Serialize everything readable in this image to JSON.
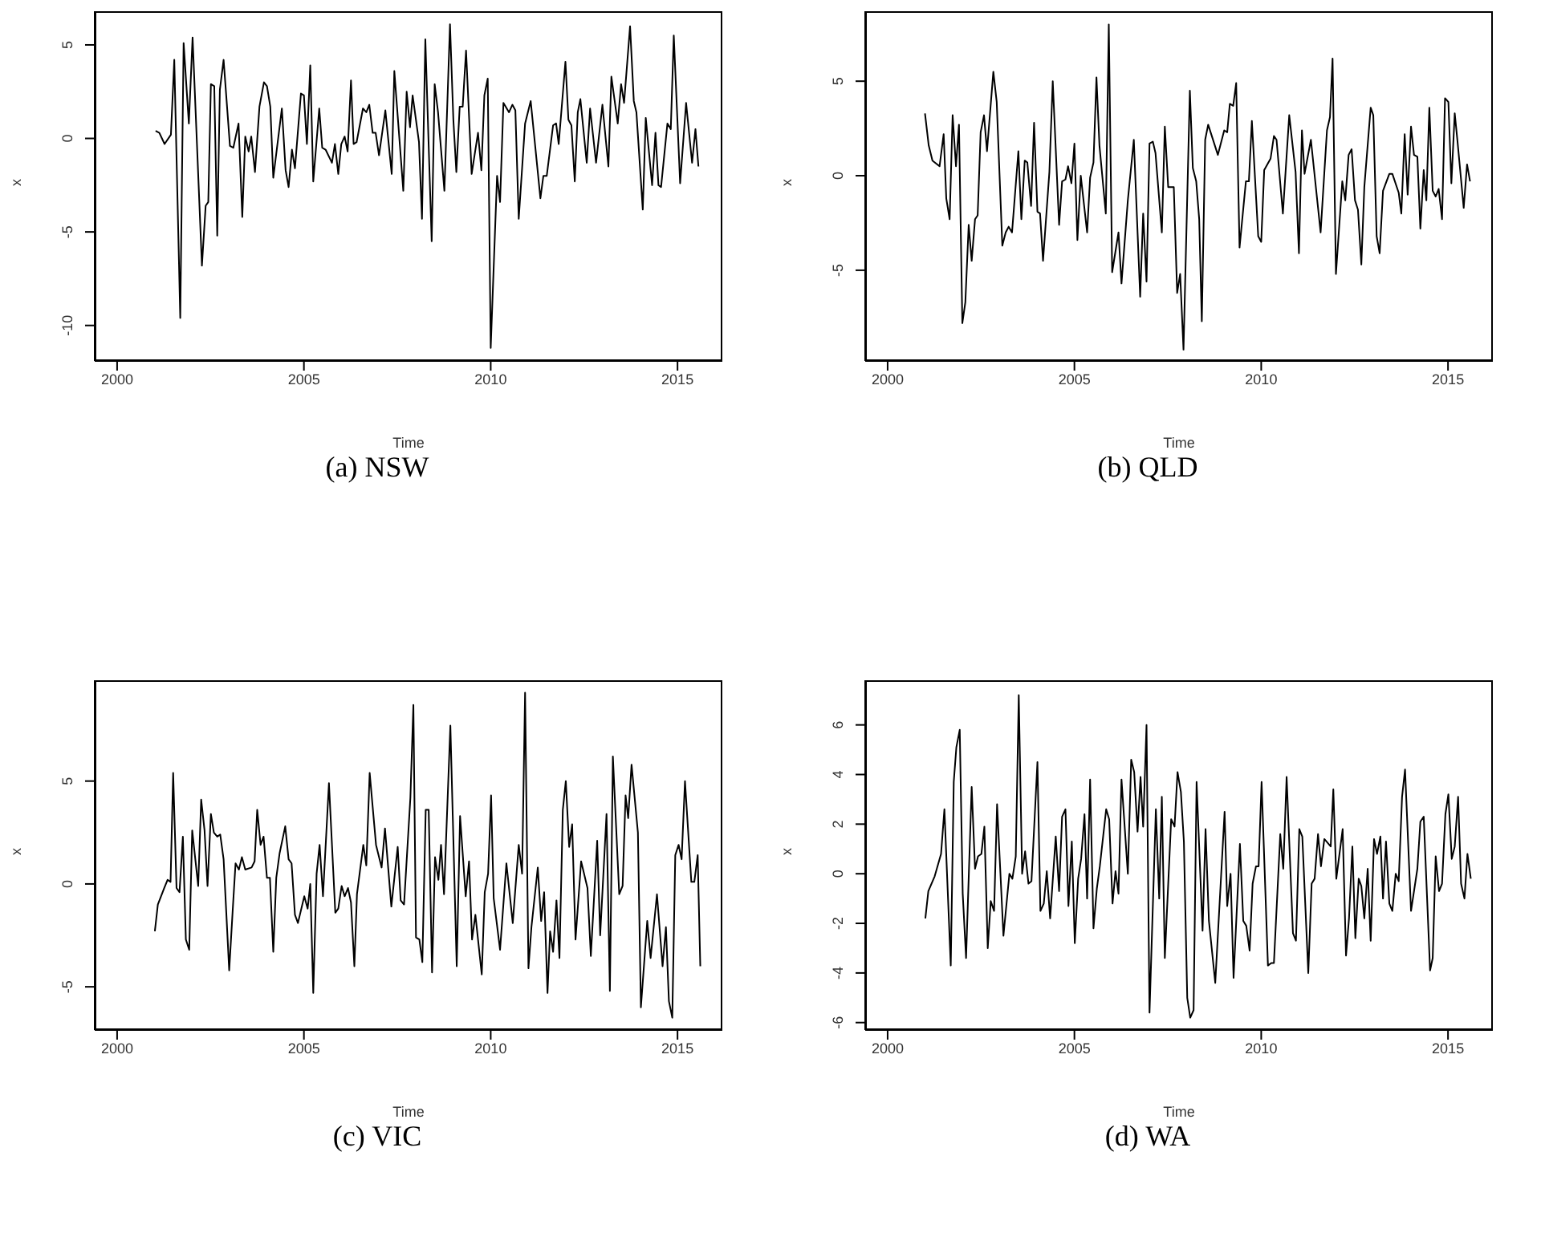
{
  "chart_data": [
    {
      "type": "line",
      "title": "(a) NSW",
      "xlabel": "Time",
      "ylabel": "x",
      "color": "#000000",
      "xlim": [
        1999.4,
        2016.2
      ],
      "xticks": [
        2000,
        2005,
        2010,
        2015
      ],
      "ylim": [
        -11.9,
        6.8
      ],
      "yticks": [
        -10,
        -5,
        0,
        5
      ],
      "x": [
        2001.03,
        2001.13,
        2001.27,
        2001.44,
        2001.53,
        2001.69,
        2001.78,
        2001.92,
        2002.02,
        2002.27,
        2002.37,
        2002.44,
        2002.51,
        2002.6,
        2002.68,
        2002.75,
        2002.85,
        2003.02,
        2003.11,
        2003.25,
        2003.35,
        2003.43,
        2003.52,
        2003.59,
        2003.69,
        2003.81,
        2003.93,
        2004.01,
        2004.1,
        2004.18,
        2004.41,
        2004.51,
        2004.59,
        2004.68,
        2004.76,
        2004.92,
        2005.0,
        2005.08,
        2005.17,
        2005.25,
        2005.41,
        2005.49,
        2005.58,
        2005.75,
        2005.83,
        2005.92,
        2006.0,
        2006.09,
        2006.17,
        2006.26,
        2006.33,
        2006.41,
        2006.58,
        2006.67,
        2006.75,
        2006.84,
        2006.92,
        2007.01,
        2007.18,
        2007.35,
        2007.42,
        2007.66,
        2007.75,
        2007.84,
        2007.91,
        2008.08,
        2008.16,
        2008.25,
        2008.42,
        2008.5,
        2008.59,
        2008.76,
        2008.91,
        2009.0,
        2009.08,
        2009.17,
        2009.25,
        2009.34,
        2009.49,
        2009.66,
        2009.75,
        2009.83,
        2009.92,
        2010.0,
        2010.17,
        2010.25,
        2010.34,
        2010.49,
        2010.58,
        2010.66,
        2010.75,
        2010.92,
        2011.07,
        2011.33,
        2011.41,
        2011.5,
        2011.67,
        2011.75,
        2011.82,
        2012.0,
        2012.08,
        2012.16,
        2012.25,
        2012.33,
        2012.4,
        2012.57,
        2012.66,
        2012.82,
        2012.99,
        2013.15,
        2013.23,
        2013.4,
        2013.49,
        2013.57,
        2013.73,
        2013.83,
        2013.9,
        2014.07,
        2014.15,
        2014.32,
        2014.41,
        2014.49,
        2014.56,
        2014.73,
        2014.82,
        2014.9,
        2015.07,
        2015.23,
        2015.39,
        2015.48,
        2015.56
      ],
      "values": [
        0.4,
        0.3,
        -0.3,
        0.2,
        4.2,
        -9.6,
        5.1,
        0.8,
        5.4,
        -6.8,
        -3.6,
        -3.4,
        2.9,
        2.8,
        -5.2,
        2.6,
        4.2,
        -0.4,
        -0.5,
        0.8,
        -4.2,
        0.1,
        -0.7,
        0.1,
        -1.8,
        1.7,
        3.0,
        2.8,
        1.7,
        -2.1,
        1.6,
        -1.7,
        -2.6,
        -0.6,
        -1.6,
        2.4,
        2.3,
        -0.3,
        3.9,
        -2.3,
        1.6,
        -0.5,
        -0.6,
        -1.3,
        -0.3,
        -1.9,
        -0.3,
        0.1,
        -0.7,
        3.1,
        -0.3,
        -0.2,
        1.6,
        1.4,
        1.8,
        0.3,
        0.3,
        -0.9,
        1.5,
        -1.9,
        3.6,
        -2.8,
        2.5,
        0.6,
        2.3,
        -0.2,
        -4.3,
        5.3,
        -5.5,
        2.9,
        1.4,
        -2.8,
        6.1,
        1.0,
        -1.8,
        1.7,
        1.7,
        4.7,
        -1.9,
        0.3,
        -1.7,
        2.3,
        3.2,
        -11.2,
        -2.0,
        -3.4,
        1.9,
        1.4,
        1.8,
        1.5,
        -4.3,
        0.8,
        2.0,
        -3.2,
        -2.0,
        -2.0,
        0.7,
        0.8,
        -0.3,
        4.1,
        1.0,
        0.7,
        -2.3,
        1.4,
        2.1,
        -1.3,
        1.6,
        -1.3,
        1.8,
        -1.5,
        3.3,
        0.8,
        2.9,
        1.9,
        6.0,
        2.0,
        1.4,
        -3.8,
        1.1,
        -2.5,
        0.3,
        -2.5,
        -2.6,
        0.8,
        0.5,
        5.5,
        -2.4,
        1.9,
        -1.3,
        0.5,
        -1.5
      ]
    },
    {
      "type": "line",
      "title": "(b) QLD",
      "xlabel": "Time",
      "ylabel": "x",
      "color": "#000000",
      "xlim": [
        1999.4,
        2016.2
      ],
      "xticks": [
        2000,
        2005,
        2010,
        2015
      ],
      "ylim": [
        -9.8,
        8.7
      ],
      "yticks": [
        -5,
        0,
        5
      ],
      "x": [
        2001.0,
        2001.1,
        2001.2,
        2001.39,
        2001.5,
        2001.57,
        2001.66,
        2001.74,
        2001.83,
        2001.91,
        2002.0,
        2002.08,
        2002.17,
        2002.25,
        2002.34,
        2002.41,
        2002.49,
        2002.58,
        2002.66,
        2002.83,
        2002.92,
        2003.07,
        2003.16,
        2003.24,
        2003.33,
        2003.5,
        2003.58,
        2003.67,
        2003.74,
        2003.84,
        2003.92,
        2004.01,
        2004.08,
        2004.16,
        2004.33,
        2004.42,
        2004.59,
        2004.67,
        2004.76,
        2004.83,
        2004.92,
        2005.0,
        2005.08,
        2005.17,
        2005.34,
        2005.42,
        2005.51,
        2005.59,
        2005.67,
        2005.84,
        2005.92,
        2006.01,
        2006.18,
        2006.26,
        2006.43,
        2006.59,
        2006.76,
        2006.84,
        2006.93,
        2007.01,
        2007.1,
        2007.17,
        2007.34,
        2007.42,
        2007.51,
        2007.66,
        2007.75,
        2007.83,
        2007.92,
        2008.09,
        2008.17,
        2008.26,
        2008.34,
        2008.41,
        2008.5,
        2008.58,
        2008.84,
        2009.01,
        2009.09,
        2009.16,
        2009.25,
        2009.33,
        2009.42,
        2009.59,
        2009.67,
        2009.75,
        2009.92,
        2010.0,
        2010.08,
        2010.25,
        2010.34,
        2010.41,
        2010.58,
        2010.75,
        2010.92,
        2011.01,
        2011.09,
        2011.16,
        2011.33,
        2011.59,
        2011.76,
        2011.84,
        2011.91,
        2012.0,
        2012.17,
        2012.25,
        2012.34,
        2012.42,
        2012.51,
        2012.59,
        2012.68,
        2012.76,
        2012.93,
        2013.0,
        2013.09,
        2013.17,
        2013.26,
        2013.43,
        2013.51,
        2013.68,
        2013.75,
        2013.84,
        2013.92,
        2014.01,
        2014.09,
        2014.18,
        2014.26,
        2014.35,
        2014.42,
        2014.5,
        2014.59,
        2014.67,
        2014.75,
        2014.84,
        2014.92,
        2015.01,
        2015.09,
        2015.18,
        2015.25,
        2015.42,
        2015.51,
        2015.59
      ],
      "values": [
        3.3,
        1.6,
        0.8,
        0.5,
        2.2,
        -1.2,
        -2.3,
        3.2,
        0.5,
        2.7,
        -7.8,
        -6.7,
        -2.6,
        -4.5,
        -2.3,
        -2.1,
        2.3,
        3.2,
        1.3,
        5.5,
        3.9,
        -3.7,
        -3.0,
        -2.7,
        -3.0,
        1.3,
        -2.3,
        0.8,
        0.7,
        -1.6,
        2.8,
        -1.9,
        -2.0,
        -4.5,
        0.2,
        5.0,
        -2.6,
        -0.3,
        -0.2,
        0.5,
        -0.4,
        1.7,
        -3.4,
        0.0,
        -3.0,
        -0.1,
        0.7,
        5.2,
        1.6,
        -2.0,
        8.0,
        -5.1,
        -3.0,
        -5.7,
        -1.3,
        1.9,
        -6.4,
        -2.0,
        -5.6,
        1.7,
        1.8,
        1.2,
        -3.0,
        2.6,
        -0.6,
        -0.6,
        -6.2,
        -5.2,
        -9.2,
        4.5,
        0.4,
        -0.3,
        -2.3,
        -7.7,
        1.9,
        2.7,
        1.1,
        2.4,
        2.3,
        3.8,
        3.7,
        4.9,
        -3.8,
        -0.3,
        -0.3,
        2.9,
        -3.2,
        -3.5,
        0.3,
        0.9,
        2.1,
        1.9,
        -2.0,
        3.2,
        0.2,
        -4.1,
        2.4,
        0.1,
        1.9,
        -3.0,
        2.4,
        3.1,
        6.2,
        -5.2,
        -0.3,
        -1.3,
        1.1,
        1.4,
        -1.3,
        -1.8,
        -4.7,
        -0.6,
        3.6,
        3.2,
        -3.2,
        -4.1,
        -0.8,
        0.1,
        0.1,
        -0.9,
        -2.0,
        2.2,
        -1.0,
        2.6,
        1.1,
        1.0,
        -2.8,
        0.3,
        -1.3,
        3.6,
        -0.8,
        -1.1,
        -0.7,
        -2.3,
        4.1,
        3.9,
        -0.4,
        3.3,
        1.9,
        -1.7,
        0.6,
        -0.3
      ]
    },
    {
      "type": "line",
      "title": "(c) VIC",
      "xlabel": "Time",
      "ylabel": "x",
      "color": "#000000",
      "xlim": [
        1999.4,
        2016.2
      ],
      "xticks": [
        2000,
        2005,
        2010,
        2015
      ],
      "ylim": [
        -7.1,
        9.9
      ],
      "yticks": [
        -5,
        0,
        5
      ],
      "x": [
        2001.01,
        2001.09,
        2001.26,
        2001.35,
        2001.43,
        2001.5,
        2001.59,
        2001.67,
        2001.76,
        2001.84,
        2001.93,
        2002.01,
        2002.17,
        2002.25,
        2002.34,
        2002.42,
        2002.51,
        2002.59,
        2002.68,
        2002.76,
        2002.85,
        2003.0,
        2003.09,
        2003.17,
        2003.26,
        2003.34,
        2003.43,
        2003.6,
        2003.68,
        2003.75,
        2003.84,
        2003.92,
        2004.01,
        2004.09,
        2004.18,
        2004.26,
        2004.35,
        2004.5,
        2004.59,
        2004.67,
        2004.76,
        2004.84,
        2005.01,
        2005.1,
        2005.17,
        2005.25,
        2005.34,
        2005.42,
        2005.51,
        2005.67,
        2005.84,
        2005.92,
        2006.01,
        2006.09,
        2006.18,
        2006.26,
        2006.35,
        2006.42,
        2006.59,
        2006.67,
        2006.76,
        2006.93,
        2007.08,
        2007.17,
        2007.34,
        2007.51,
        2007.59,
        2007.68,
        2007.85,
        2007.93,
        2008.0,
        2008.09,
        2008.17,
        2008.26,
        2008.34,
        2008.43,
        2008.51,
        2008.6,
        2008.67,
        2008.75,
        2008.92,
        2009.09,
        2009.18,
        2009.33,
        2009.42,
        2009.5,
        2009.59,
        2009.76,
        2009.84,
        2009.93,
        2010.01,
        2010.08,
        2010.25,
        2010.42,
        2010.59,
        2010.75,
        2010.84,
        2010.92,
        2011.01,
        2011.09,
        2011.26,
        2011.35,
        2011.43,
        2011.52,
        2011.59,
        2011.67,
        2011.76,
        2011.84,
        2011.93,
        2012.01,
        2012.1,
        2012.18,
        2012.27,
        2012.42,
        2012.59,
        2012.68,
        2012.85,
        2012.93,
        2013.1,
        2013.19,
        2013.27,
        2013.44,
        2013.53,
        2013.61,
        2013.68,
        2013.77,
        2013.94,
        2014.02,
        2014.19,
        2014.28,
        2014.45,
        2014.6,
        2014.69,
        2014.77,
        2014.86,
        2014.94,
        2015.03,
        2015.11,
        2015.2,
        2015.37,
        2015.45,
        2015.54,
        2015.61
      ],
      "values": [
        -2.3,
        -1.0,
        -0.2,
        0.2,
        0.1,
        5.4,
        -0.2,
        -0.4,
        2.3,
        -2.7,
        -3.2,
        2.6,
        -0.1,
        4.1,
        2.6,
        -0.1,
        3.4,
        2.5,
        2.3,
        2.4,
        1.2,
        -4.2,
        -1.4,
        1.0,
        0.7,
        1.3,
        0.7,
        0.8,
        1.1,
        3.6,
        1.9,
        2.3,
        0.3,
        0.3,
        -3.3,
        0.3,
        1.5,
        2.8,
        1.2,
        1.0,
        -1.5,
        -1.9,
        -0.6,
        -1.2,
        0.0,
        -5.3,
        0.5,
        1.9,
        -0.6,
        4.9,
        -1.4,
        -1.2,
        -0.1,
        -0.6,
        -0.2,
        -0.9,
        -4.0,
        -0.5,
        1.9,
        0.9,
        5.4,
        1.9,
        0.8,
        2.7,
        -1.1,
        1.8,
        -0.8,
        -1.0,
        4.2,
        8.7,
        -2.6,
        -2.7,
        -3.8,
        3.6,
        3.6,
        -4.3,
        1.3,
        0.2,
        1.9,
        -0.5,
        7.7,
        -4.0,
        3.3,
        -0.6,
        1.1,
        -2.7,
        -1.5,
        -4.4,
        -0.4,
        0.5,
        4.3,
        -0.7,
        -3.2,
        1.0,
        -1.9,
        1.9,
        0.5,
        9.3,
        -4.1,
        -2.1,
        0.8,
        -1.8,
        -0.4,
        -5.3,
        -2.3,
        -3.3,
        -0.8,
        -3.6,
        3.6,
        5.0,
        1.8,
        2.9,
        -2.7,
        1.1,
        -0.2,
        -3.5,
        2.1,
        -2.5,
        3.4,
        -5.2,
        6.2,
        -0.5,
        -0.1,
        4.3,
        3.2,
        5.8,
        2.5,
        -6.0,
        -1.8,
        -3.6,
        -0.5,
        -4.0,
        -2.1,
        -5.7,
        -6.5,
        1.4,
        1.9,
        1.2,
        5.0,
        0.1,
        0.1,
        1.4,
        -4.0
      ]
    },
    {
      "type": "line",
      "title": "(d) WA",
      "xlabel": "Time",
      "ylabel": "x",
      "color": "#000000",
      "xlim": [
        1999.4,
        2016.2
      ],
      "xticks": [
        2000,
        2005,
        2010,
        2015
      ],
      "ylim": [
        -6.3,
        7.8
      ],
      "yticks": [
        -6,
        -4,
        -2,
        0,
        2,
        4,
        6
      ],
      "x": [
        2001.01,
        2001.09,
        2001.26,
        2001.43,
        2001.52,
        2001.69,
        2001.77,
        2001.84,
        2001.93,
        2002.01,
        2002.1,
        2002.25,
        2002.34,
        2002.42,
        2002.51,
        2002.59,
        2002.68,
        2002.76,
        2002.85,
        2002.93,
        2003.1,
        2003.26,
        2003.34,
        2003.43,
        2003.51,
        2003.6,
        2003.68,
        2003.77,
        2003.85,
        2004.01,
        2004.09,
        2004.18,
        2004.26,
        2004.35,
        2004.5,
        2004.59,
        2004.67,
        2004.76,
        2004.84,
        2004.93,
        2005.01,
        2005.1,
        2005.18,
        2005.27,
        2005.34,
        2005.42,
        2005.51,
        2005.6,
        2005.68,
        2005.85,
        2005.93,
        2006.02,
        2006.1,
        2006.18,
        2006.26,
        2006.43,
        2006.52,
        2006.6,
        2006.69,
        2006.77,
        2006.84,
        2006.93,
        2007.01,
        2007.18,
        2007.27,
        2007.34,
        2007.42,
        2007.59,
        2007.68,
        2007.76,
        2007.85,
        2007.93,
        2008.02,
        2008.1,
        2008.19,
        2008.27,
        2008.43,
        2008.51,
        2008.6,
        2008.77,
        2009.02,
        2009.09,
        2009.18,
        2009.26,
        2009.43,
        2009.52,
        2009.6,
        2009.69,
        2009.77,
        2009.86,
        2009.93,
        2010.01,
        2010.18,
        2010.27,
        2010.34,
        2010.51,
        2010.59,
        2010.68,
        2010.85,
        2010.93,
        2011.02,
        2011.1,
        2011.26,
        2011.35,
        2011.43,
        2011.52,
        2011.6,
        2011.69,
        2011.86,
        2011.93,
        2012.01,
        2012.18,
        2012.27,
        2012.35,
        2012.44,
        2012.52,
        2012.61,
        2012.68,
        2012.76,
        2012.85,
        2012.93,
        2013.02,
        2013.1,
        2013.19,
        2013.26,
        2013.34,
        2013.43,
        2013.51,
        2013.6,
        2013.68,
        2013.77,
        2013.85,
        2014.01,
        2014.18,
        2014.26,
        2014.35,
        2014.52,
        2014.59,
        2014.67,
        2014.76,
        2014.84,
        2014.93,
        2015.01,
        2015.1,
        2015.18,
        2015.27,
        2015.35,
        2015.44,
        2015.52,
        2015.61
      ],
      "values": [
        -1.8,
        -0.7,
        -0.1,
        0.8,
        2.6,
        -3.7,
        3.7,
        5.1,
        5.8,
        -0.8,
        -3.4,
        3.5,
        0.2,
        0.7,
        0.8,
        1.9,
        -3.0,
        -1.1,
        -1.5,
        2.8,
        -2.5,
        0.0,
        -0.2,
        0.7,
        7.2,
        0.0,
        0.9,
        -0.4,
        -0.3,
        4.5,
        -1.5,
        -1.2,
        0.1,
        -1.8,
        1.5,
        -0.7,
        2.3,
        2.6,
        -1.3,
        1.3,
        -2.8,
        -0.2,
        0.6,
        2.4,
        -1.0,
        3.8,
        -2.2,
        -0.6,
        0.3,
        2.6,
        2.2,
        -1.2,
        0.1,
        -0.8,
        3.8,
        0.0,
        4.6,
        4.1,
        1.7,
        3.9,
        1.9,
        6.0,
        -5.6,
        2.6,
        -1.0,
        3.1,
        -3.4,
        2.2,
        1.9,
        4.1,
        3.3,
        1.3,
        -5.0,
        -5.8,
        -5.5,
        3.7,
        -2.3,
        1.8,
        -1.9,
        -4.4,
        2.5,
        -1.3,
        0.0,
        -4.2,
        1.2,
        -1.9,
        -2.1,
        -3.1,
        -0.4,
        0.3,
        0.3,
        3.7,
        -3.7,
        -3.6,
        -3.6,
        1.6,
        0.2,
        3.9,
        -2.4,
        -2.7,
        1.8,
        1.5,
        -4.0,
        -0.4,
        -0.2,
        1.6,
        0.3,
        1.4,
        1.1,
        3.4,
        -0.2,
        1.8,
        -3.3,
        -1.8,
        1.1,
        -2.6,
        -0.2,
        -0.5,
        -1.8,
        0.2,
        -2.7,
        1.4,
        0.8,
        1.5,
        -1.0,
        1.3,
        -1.2,
        -1.5,
        0.0,
        -0.3,
        3.1,
        4.2,
        -1.5,
        0.2,
        2.1,
        2.3,
        -3.9,
        -3.4,
        0.7,
        -0.7,
        -0.4,
        2.4,
        3.2,
        0.6,
        1.1,
        3.1,
        -0.4,
        -1.0,
        0.8,
        -0.2
      ]
    }
  ]
}
